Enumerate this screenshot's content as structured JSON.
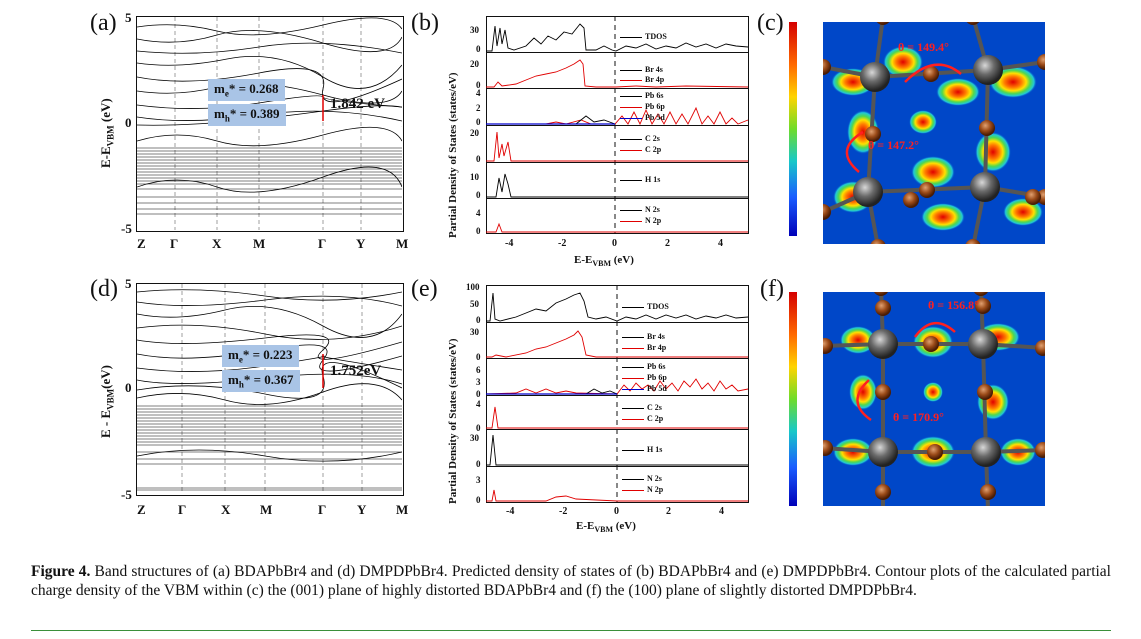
{
  "panels": {
    "a": {
      "letter": "(a)",
      "ylabel_main": "E-E",
      "ylabel_sub": "VBM",
      "ylabel_unit": " (eV)",
      "yticks": [
        "5",
        "0",
        "-5"
      ],
      "kpoints": [
        "Z",
        "Γ",
        "X",
        "M",
        "Γ",
        "Y",
        "M"
      ],
      "me_label": "m",
      "me_sup": "e",
      "me_value": "* = 0.268",
      "mh_label": "m",
      "mh_sup": "h",
      "mh_value": "* = 0.389",
      "gap": "1.842 eV"
    },
    "d": {
      "letter": "(d)",
      "ylabel_main": "E - E",
      "ylabel_sub": "VBM",
      "ylabel_unit": "(eV)",
      "yticks": [
        "5",
        "0",
        "-5"
      ],
      "kpoints": [
        "Z",
        "Γ",
        "X",
        "M",
        "Γ",
        "Y",
        "M"
      ],
      "me_label": "m",
      "me_sup": "e",
      "me_value": "* = 0.223",
      "mh_label": "m",
      "mh_sup": "h",
      "mh_value": "* = 0.367",
      "gap": "1.752eV"
    },
    "b": {
      "letter": "(b)",
      "ylabel": "Partial Density of States (states/eV)",
      "xlabel_main": "E-E",
      "xlabel_sub": "VBM",
      "xlabel_unit": " (eV)",
      "xticks": [
        "-4",
        "-2",
        "0",
        "2",
        "4"
      ],
      "rows": [
        {
          "ticks": [
            "30",
            "0"
          ],
          "legend": [
            "TDOS"
          ]
        },
        {
          "ticks": [
            "20",
            "0"
          ],
          "legend": [
            "Br 4s",
            "Br 4p"
          ]
        },
        {
          "ticks": [
            "4",
            "2",
            "0"
          ],
          "legend": [
            "Pb 6s",
            "Pb 6p",
            "Pb 5d"
          ]
        },
        {
          "ticks": [
            "20",
            "0"
          ],
          "legend": [
            "C 2s",
            "C 2p"
          ]
        },
        {
          "ticks": [
            "10",
            "0"
          ],
          "legend": [
            "H 1s"
          ]
        },
        {
          "ticks": [
            "4",
            "0"
          ],
          "legend": [
            "N 2s",
            "N 2p"
          ]
        }
      ]
    },
    "e": {
      "letter": "(e)",
      "ylabel": "Partial Density of States (states/eV)",
      "xlabel_main": "E-E",
      "xlabel_sub": "VBM",
      "xlabel_unit": " (eV)",
      "xticks": [
        "-4",
        "-2",
        "0",
        "2",
        "4"
      ],
      "rows": [
        {
          "ticks": [
            "100",
            "50",
            "0"
          ],
          "legend": [
            "TDOS"
          ]
        },
        {
          "ticks": [
            "30",
            "0"
          ],
          "legend": [
            "Br 4s",
            "Br 4p"
          ]
        },
        {
          "ticks": [
            "6",
            "3",
            "0"
          ],
          "legend": [
            "Pb 6s",
            "Pb 6p",
            "Pb 5d"
          ]
        },
        {
          "ticks": [
            "4",
            "0"
          ],
          "legend": [
            "C 2s",
            "C 2p"
          ]
        },
        {
          "ticks": [
            "30",
            "0"
          ],
          "legend": [
            "H 1s"
          ]
        },
        {
          "ticks": [
            "3",
            "0"
          ],
          "legend": [
            "N 2s",
            "N 2p"
          ]
        }
      ]
    },
    "c": {
      "letter": "(c)",
      "angle1": "θ = 149.4°",
      "angle2": "θ = 147.2°"
    },
    "f": {
      "letter": "(f)",
      "angle1": "θ = 156.8°",
      "angle2": "θ = 170.9°"
    }
  },
  "caption": {
    "figure_label": "Figure 4.",
    "text": "Band structures of (a) BDAPbBr4 and (d) DMPDPbBr4. Predicted density of states of (b) BDAPbBr4 and (e) DMPDPbBr4. Contour plots of the calculated partial charge density of the VBM within (c) the (001) plane of highly distorted BDAPbBr4 and (f) the (100) plane of slightly distorted DMPDPbBr4."
  },
  "colors": {
    "tdos": "#000000",
    "p_orbital": "#e00000",
    "d_orbital": "#0000cc",
    "mass_box": "#a9c4e6",
    "contour_bg": "#0047c8",
    "angle": "#ff2020",
    "rule": "#3a8f3a"
  }
}
